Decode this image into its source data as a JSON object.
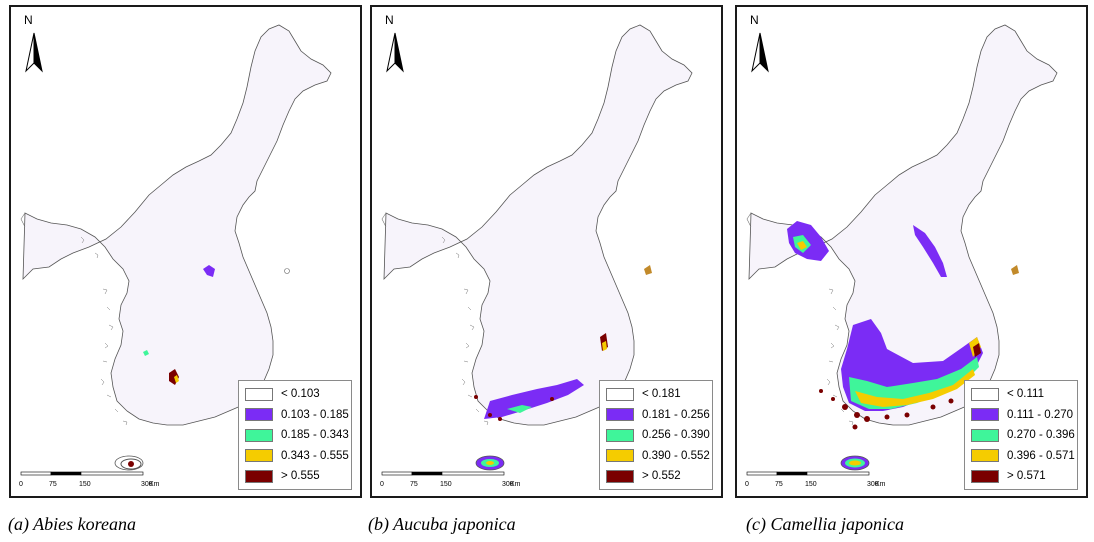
{
  "panels": [
    {
      "caption": "(a)  Abies koreana",
      "north_label": "N",
      "legend": [
        {
          "label": "< 0.103",
          "color": "#ffffff"
        },
        {
          "label": "0.103 - 0.185",
          "color": "#7b2cf5"
        },
        {
          "label": "0.185 - 0.343",
          "color": "#3ff59a"
        },
        {
          "label": "0.343 - 0.555",
          "color": "#f5cc00"
        },
        {
          "label": "> 0.555",
          "color": "#7a0000"
        }
      ],
      "scale_ticks": [
        "0",
        "75",
        "150",
        "300"
      ],
      "scale_unit": "Km"
    },
    {
      "caption": "(b)  Aucuba japonica",
      "north_label": "N",
      "legend": [
        {
          "label": "< 0.181",
          "color": "#ffffff"
        },
        {
          "label": "0.181 - 0.256",
          "color": "#7b2cf5"
        },
        {
          "label": "0.256 - 0.390",
          "color": "#3ff59a"
        },
        {
          "label": "0.390 - 0.552",
          "color": "#f5cc00"
        },
        {
          "label": "> 0.552",
          "color": "#7a0000"
        }
      ],
      "scale_ticks": [
        "0",
        "75",
        "150",
        "300"
      ],
      "scale_unit": "Km"
    },
    {
      "caption": "(c)  Camellia japonica",
      "north_label": "N",
      "legend": [
        {
          "label": "< 0.111",
          "color": "#ffffff"
        },
        {
          "label": "0.111 - 0.270",
          "color": "#7b2cf5"
        },
        {
          "label": "0.270 - 0.396",
          "color": "#3ff59a"
        },
        {
          "label": "0.396 - 0.571",
          "color": "#f5cc00"
        },
        {
          "label": "> 0.571",
          "color": "#7a0000"
        }
      ],
      "scale_ticks": [
        "0",
        "75",
        "150",
        "300"
      ],
      "scale_unit": "Km"
    }
  ],
  "colors": {
    "land": "#f7f4fb",
    "border": "#1a1a1a",
    "coast": "#555555"
  }
}
